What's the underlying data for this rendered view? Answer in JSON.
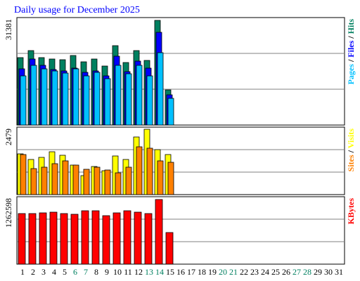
{
  "chart_data": [
    {
      "type": "bar",
      "title": "Daily usage for December 2025",
      "ylim": [
        0,
        32220
      ],
      "yticks": [
        31381
      ],
      "grid_lines": 3,
      "series": [
        {
          "name": "Hits",
          "color": "#008060",
          "values": [
            20218,
            22323,
            20218,
            19796,
            19586,
            20849,
            18953,
            19796,
            17690,
            23797,
            18743,
            22323,
            19375,
            31381,
            10530,
            null,
            null,
            null,
            null,
            null,
            null,
            null,
            null,
            null,
            null,
            null,
            null,
            null,
            null,
            null,
            null
          ]
        },
        {
          "name": "Files",
          "color": "#0000ff",
          "values": [
            16848,
            19796,
            17901,
            16637,
            16216,
            17059,
            15795,
            16216,
            14742,
            20639,
            16006,
            19165,
            17059,
            27799,
            9056,
            null,
            null,
            null,
            null,
            null,
            null,
            null,
            null,
            null,
            null,
            null,
            null,
            null,
            null,
            null,
            null
          ]
        },
        {
          "name": "Pages",
          "color": "#00c0ff",
          "values": [
            14742,
            17901,
            16848,
            16216,
            15584,
            16848,
            14742,
            15795,
            13900,
            17901,
            15374,
            17901,
            14742,
            21692,
            8003,
            null,
            null,
            null,
            null,
            null,
            null,
            null,
            null,
            null,
            null,
            null,
            null,
            null,
            null,
            null,
            null
          ]
        }
      ]
    },
    {
      "type": "bar",
      "ylim": [
        0,
        2559
      ],
      "yticks": [
        2479
      ],
      "grid_lines": 3,
      "series": [
        {
          "name": "Visits",
          "color": "#ffff00",
          "values": [
            1546,
            1333,
            1413,
            1626,
            1493,
            1120,
            720,
            1066,
            906,
            1466,
            1333,
            2186,
            2479,
            1706,
            1520,
            null,
            null,
            null,
            null,
            null,
            null,
            null,
            null,
            null,
            null,
            null,
            null,
            null,
            null,
            null,
            null
          ]
        },
        {
          "name": "Sites",
          "color": "#ff8000",
          "values": [
            1520,
            986,
            1040,
            1173,
            1280,
            1120,
            960,
            1040,
            933,
            826,
            1040,
            1813,
            1760,
            1280,
            1226,
            null,
            null,
            null,
            null,
            null,
            null,
            null,
            null,
            null,
            null,
            null,
            null,
            null,
            null,
            null,
            null
          ]
        }
      ]
    },
    {
      "type": "bar",
      "ylim": [
        0,
        1317500
      ],
      "yticks": [
        1262598
      ],
      "grid_lines": 3,
      "categories": [
        "1",
        "2",
        "3",
        "4",
        "5",
        "6",
        "7",
        "8",
        "9",
        "10",
        "11",
        "12",
        "13",
        "14",
        "15",
        "16",
        "17",
        "18",
        "19",
        "20",
        "21",
        "22",
        "23",
        "24",
        "25",
        "26",
        "27",
        "28",
        "29",
        "30",
        "31"
      ],
      "weekend_color": "#008060",
      "weekends": [
        "6",
        "7",
        "13",
        "14",
        "20",
        "21",
        "27",
        "28"
      ],
      "series": [
        {
          "name": "KBytes",
          "color": "#ff0000",
          "values": [
            988128,
            988128,
            1001871,
            1015576,
            988128,
            974404,
            1043024,
            1043024,
            947000,
            1001871,
            1043024,
            1015576,
            988128,
            1262598,
            617580,
            null,
            null,
            null,
            null,
            null,
            null,
            null,
            null,
            null,
            null,
            null,
            null,
            null,
            null,
            null,
            null
          ]
        }
      ]
    }
  ],
  "legend_separator": " / "
}
